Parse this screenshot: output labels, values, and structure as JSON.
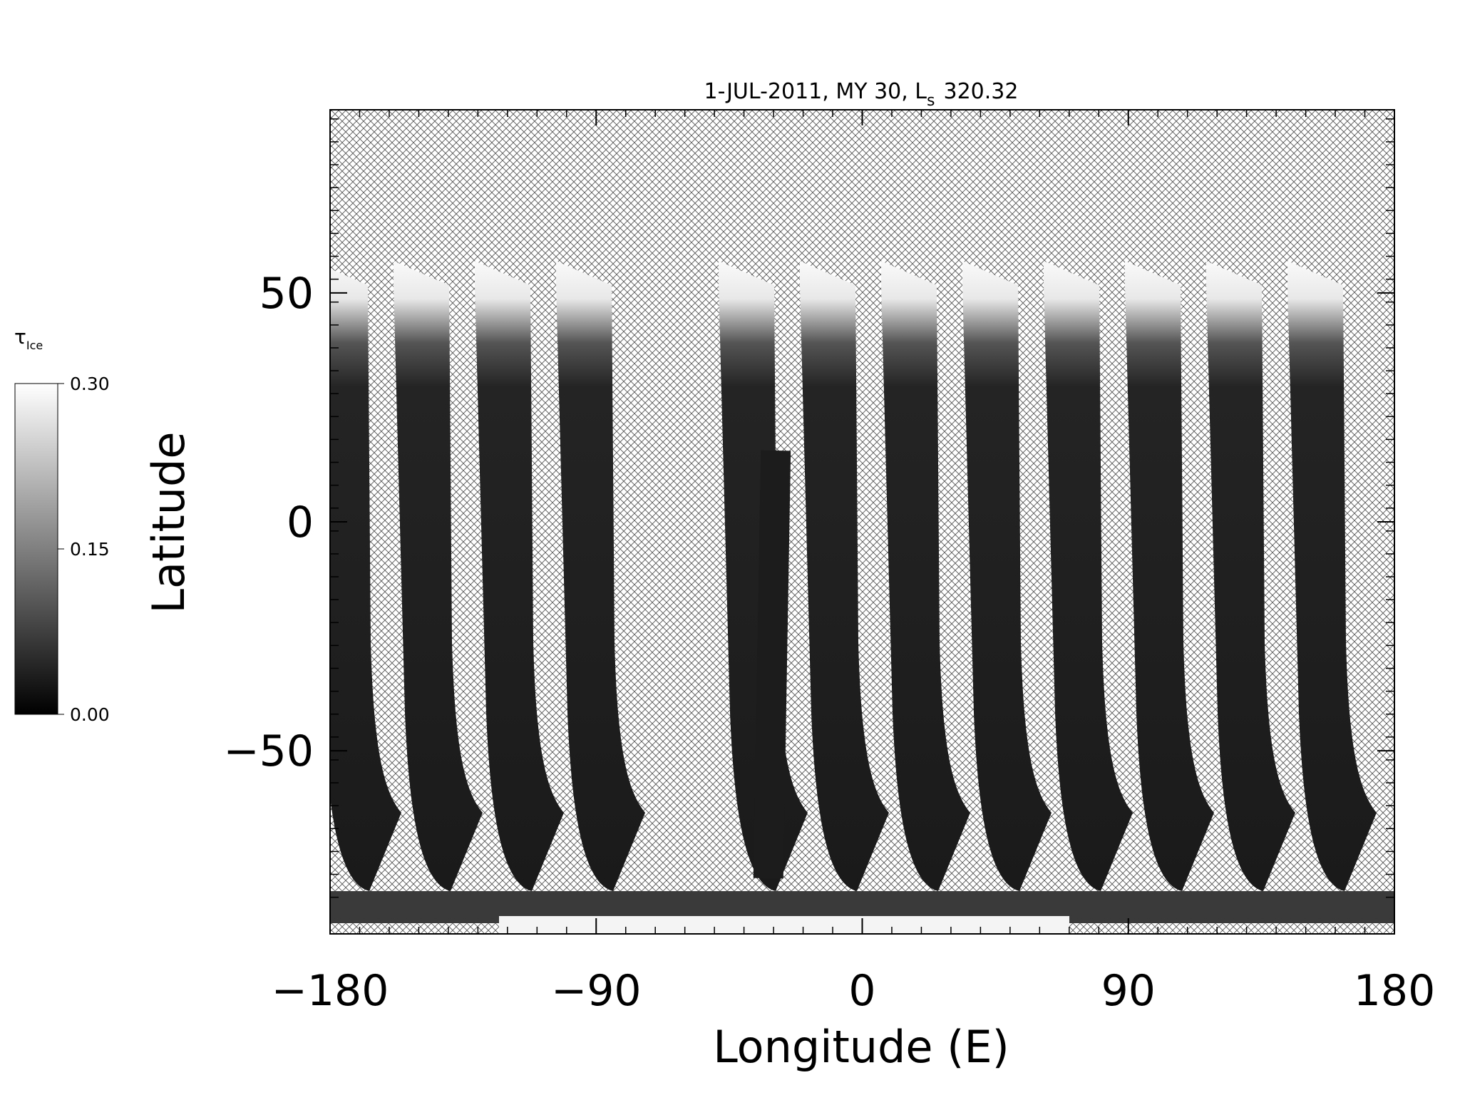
{
  "chart_data": {
    "type": "map",
    "title": "1-JUL-2011, MY 30,  L",
    "title_subscript": "s",
    "title_suffix": "320.32",
    "x_label": "Longitude (E)",
    "y_label": "Latitude",
    "xlim": [
      -180,
      180
    ],
    "xticks": [
      {
        "value": -180,
        "label": "−180"
      },
      {
        "value": -90,
        "label": "−90"
      },
      0,
      90,
      180
    ],
    "ylim": [
      -90,
      90
    ],
    "yticks": [
      {
        "value": -50,
        "label": "−50"
      },
      0,
      50
    ],
    "colorbar": {
      "label": "τ",
      "label_subscript": "Ice",
      "lim": [
        0,
        0.3
      ],
      "ticks": [
        {
          "value": 0,
          "label": "0.00"
        },
        {
          "value": 0.15,
          "label": "0.15"
        },
        {
          "value": 0.3,
          "label": "0.30"
        }
      ],
      "colors": [
        "#000000",
        "#ffffff"
      ]
    }
  }
}
